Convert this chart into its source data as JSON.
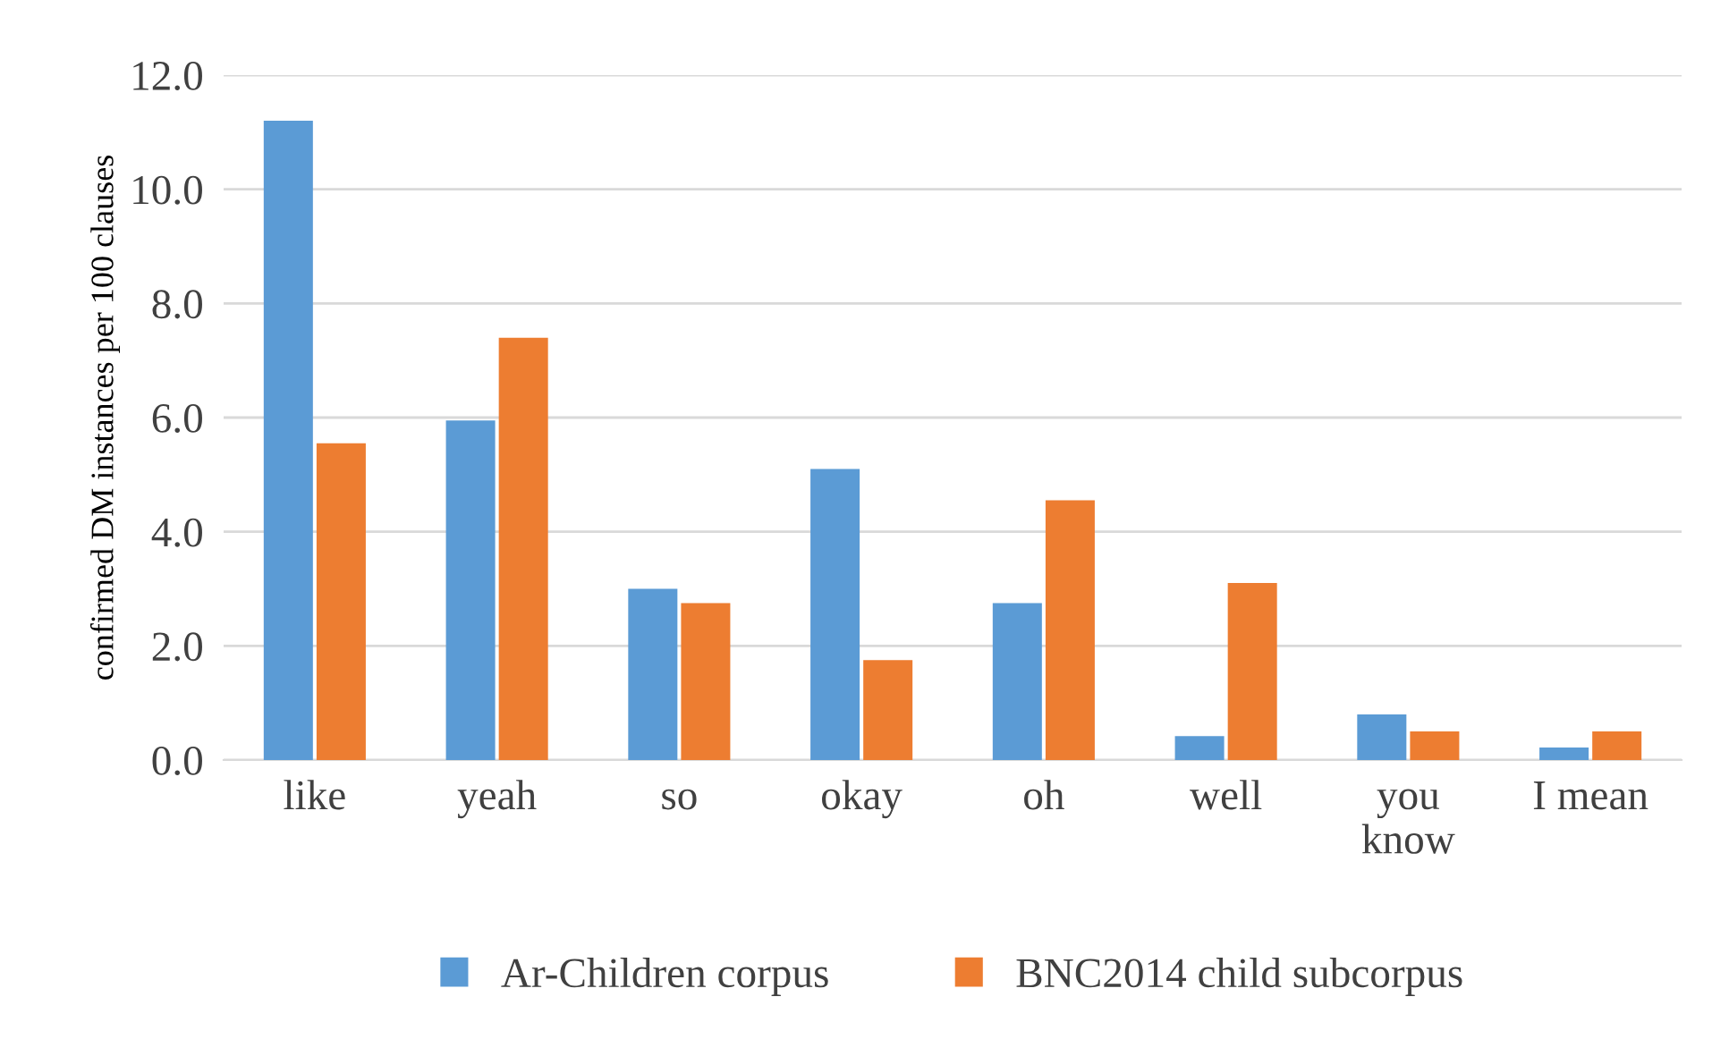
{
  "chart_data": {
    "type": "bar",
    "ylabel": "confirmed DM instances per 100 clauses",
    "categories": [
      "like",
      "yeah",
      "so",
      "okay",
      "oh",
      "well",
      "you\nknow",
      "I mean"
    ],
    "series": [
      {
        "name": "Ar-Children corpus",
        "color": "#5b9bd5",
        "values": [
          11.2,
          5.95,
          3.0,
          5.1,
          2.75,
          0.42,
          0.8,
          0.22
        ]
      },
      {
        "name": "BNC2014 child subcorpus",
        "color": "#ed7d31",
        "values": [
          5.55,
          7.4,
          2.75,
          1.75,
          4.55,
          3.1,
          0.5,
          0.5
        ]
      }
    ],
    "ylim": [
      0,
      12
    ],
    "yticks": [
      {
        "value": 0,
        "label": "0.0"
      },
      {
        "value": 2,
        "label": "2.0"
      },
      {
        "value": 4,
        "label": "4.0"
      },
      {
        "value": 6,
        "label": "6.0"
      },
      {
        "value": 8,
        "label": "8.0"
      },
      {
        "value": 10,
        "label": "10.0"
      },
      {
        "value": 12,
        "label": "12.0"
      }
    ],
    "grid": "y",
    "legend": "bottom"
  }
}
